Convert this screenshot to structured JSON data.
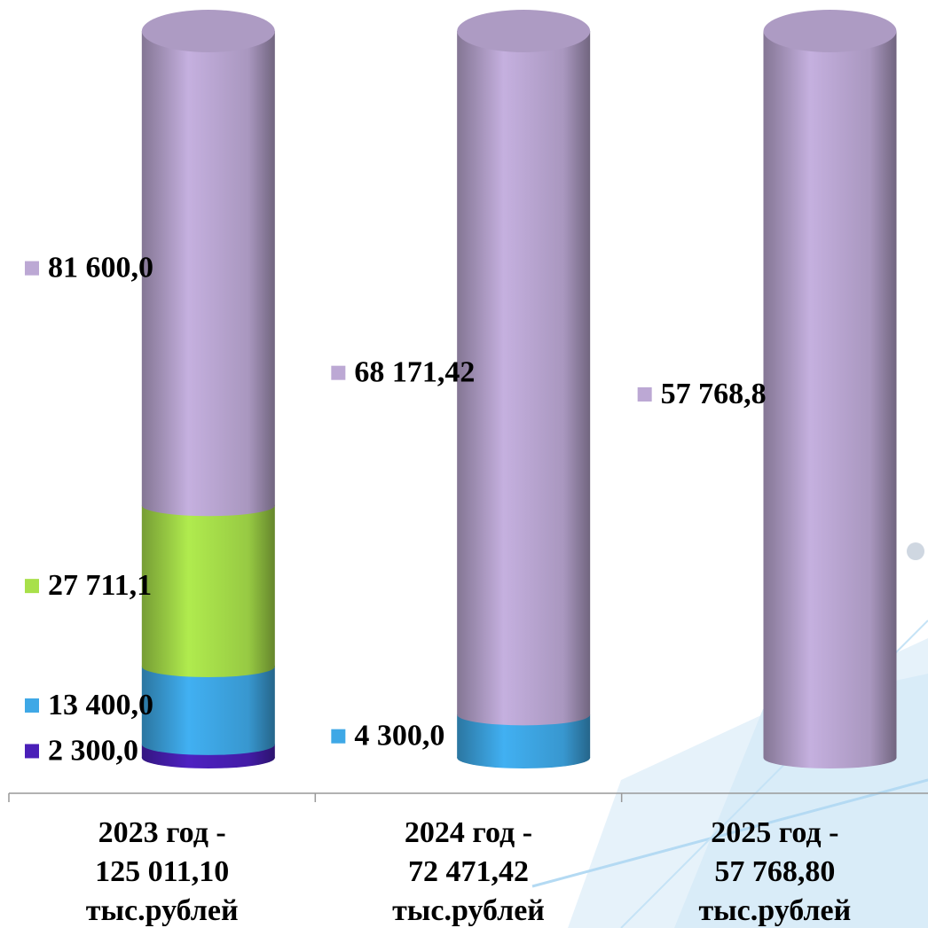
{
  "chart_data": {
    "type": "bar",
    "stacked": "percent",
    "categories": [
      [
        "2023 год -",
        "125 011,10",
        "тыс.рублей"
      ],
      [
        "2024 год -",
        "72 471,42",
        "тыс.рублей"
      ],
      [
        "2025 год -",
        "57 768,80",
        "тыс.рублей"
      ]
    ],
    "series": [
      {
        "color": "#4a1fb8",
        "values": [
          2300,
          null,
          null
        ],
        "value_labels": [
          "2 300,0",
          null,
          null
        ]
      },
      {
        "color": "#3ea8e6",
        "values": [
          13400,
          4300,
          null
        ],
        "value_labels": [
          "13 400,0",
          "4 300,0",
          null
        ]
      },
      {
        "color": "#a8e04a",
        "values": [
          27711.1,
          null,
          null
        ],
        "value_labels": [
          "27 711,1",
          null,
          null
        ]
      },
      {
        "color": "#bca8d4",
        "values": [
          81600,
          68171.42,
          57768.8
        ],
        "value_labels": [
          "81 600,0",
          "68 171,42",
          "57 768,8"
        ]
      }
    ]
  }
}
